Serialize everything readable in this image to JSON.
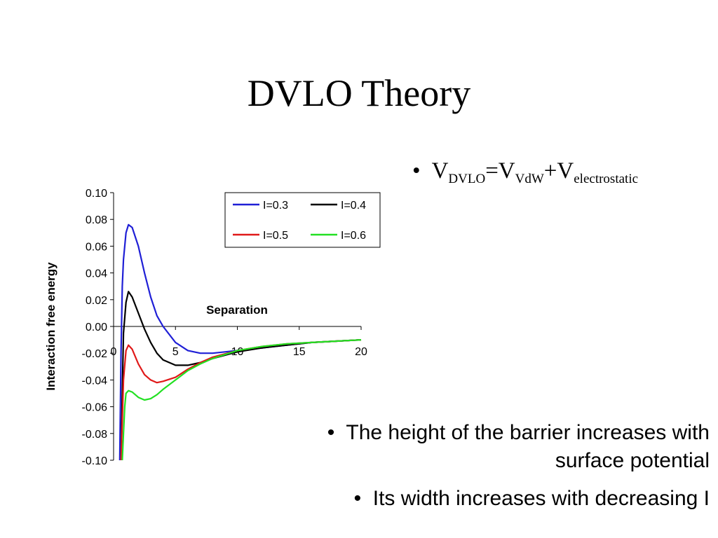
{
  "slide": {
    "title": "DVLO Theory",
    "formula": {
      "bullet": "•",
      "v1": "V",
      "sub1": "DVLO",
      "eq": "=V",
      "sub2": "VdW",
      "plus": "+V",
      "sub3": "electrostatic"
    },
    "bullets": [
      {
        "marker": "•",
        "line1": "The height of the barrier increases with",
        "line2": "surface potential"
      },
      {
        "marker": "•",
        "text": "Its width increases with decreasing I"
      }
    ]
  },
  "chart_data": {
    "type": "line",
    "title": "",
    "xlabel": "Separation",
    "ylabel": "Interaction free energy",
    "xlim": [
      0,
      20
    ],
    "ylim": [
      -0.1,
      0.1
    ],
    "xticks": [
      0,
      5,
      10,
      15,
      20
    ],
    "yticks": [
      0.1,
      0.08,
      0.06,
      0.04,
      0.02,
      0.0,
      -0.02,
      -0.04,
      -0.06,
      -0.08,
      -0.1
    ],
    "ytick_labels": [
      "0.10",
      "0.08",
      "0.06",
      "0.04",
      "0.02",
      "0.00",
      "-0.02",
      "-0.04",
      "-0.06",
      "-0.08",
      "-0.10"
    ],
    "legend_position": "top-right",
    "legend": [
      "I=0.3",
      "I=0.4",
      "I=0.5",
      "I=0.6"
    ],
    "grid": false,
    "series": [
      {
        "name": "I=0.3",
        "color": "#1f1fd6",
        "x": [
          0.5,
          0.6,
          0.7,
          0.8,
          1.0,
          1.2,
          1.5,
          2.0,
          2.5,
          3.0,
          3.5,
          4.0,
          5.0,
          6.0,
          7.0,
          8.0,
          9.0,
          10.0,
          12.0,
          14.0,
          16.0,
          18.0,
          20.0
        ],
        "y": [
          -0.1,
          -0.02,
          0.03,
          0.05,
          0.07,
          0.076,
          0.074,
          0.06,
          0.04,
          0.022,
          0.008,
          0.0,
          -0.012,
          -0.018,
          -0.02,
          -0.02,
          -0.019,
          -0.018,
          -0.016,
          -0.014,
          -0.012,
          -0.011,
          -0.01
        ]
      },
      {
        "name": "I=0.4",
        "color": "#000000",
        "x": [
          0.6,
          0.7,
          0.8,
          1.0,
          1.2,
          1.5,
          2.0,
          2.5,
          3.0,
          3.5,
          4.0,
          5.0,
          6.0,
          7.0,
          8.0,
          10.0,
          12.0,
          14.0,
          16.0,
          18.0,
          20.0
        ],
        "y": [
          -0.1,
          -0.05,
          -0.005,
          0.018,
          0.026,
          0.022,
          0.01,
          -0.002,
          -0.012,
          -0.02,
          -0.025,
          -0.029,
          -0.029,
          -0.027,
          -0.024,
          -0.019,
          -0.016,
          -0.014,
          -0.012,
          -0.011,
          -0.01
        ]
      },
      {
        "name": "I=0.5",
        "color": "#e01919",
        "x": [
          0.6,
          0.7,
          0.8,
          1.0,
          1.2,
          1.5,
          2.0,
          2.5,
          3.0,
          3.5,
          4.0,
          5.0,
          6.0,
          7.0,
          8.0,
          10.0,
          12.0,
          14.0,
          16.0,
          18.0,
          20.0
        ],
        "y": [
          -0.1,
          -0.07,
          -0.04,
          -0.018,
          -0.014,
          -0.017,
          -0.028,
          -0.036,
          -0.04,
          -0.042,
          -0.041,
          -0.038,
          -0.032,
          -0.027,
          -0.023,
          -0.018,
          -0.015,
          -0.013,
          -0.012,
          -0.011,
          -0.01
        ]
      },
      {
        "name": "I=0.6",
        "color": "#22e022",
        "x": [
          0.7,
          0.8,
          0.9,
          1.0,
          1.2,
          1.5,
          2.0,
          2.5,
          3.0,
          3.5,
          4.0,
          5.0,
          6.0,
          7.0,
          8.0,
          10.0,
          12.0,
          14.0,
          16.0,
          18.0,
          20.0
        ],
        "y": [
          -0.1,
          -0.08,
          -0.06,
          -0.05,
          -0.048,
          -0.049,
          -0.053,
          -0.055,
          -0.054,
          -0.051,
          -0.047,
          -0.04,
          -0.033,
          -0.028,
          -0.024,
          -0.018,
          -0.015,
          -0.013,
          -0.012,
          -0.011,
          -0.01
        ]
      }
    ]
  }
}
